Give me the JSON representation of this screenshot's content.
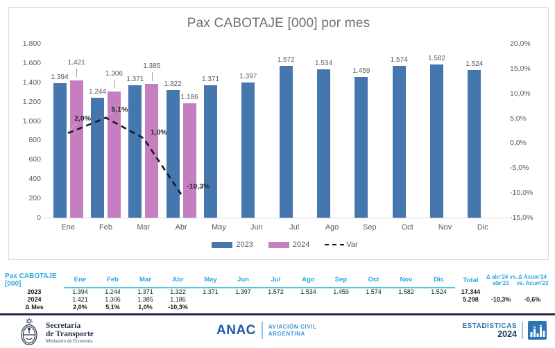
{
  "chart_data": {
    "type": "bar",
    "title": "Pax CABOTAJE [000] por mes",
    "categories": [
      "Ene",
      "Feb",
      "Mar",
      "Abr",
      "May",
      "Jun",
      "Jul",
      "Ago",
      "Sep",
      "Oct",
      "Nov",
      "Dic"
    ],
    "series": [
      {
        "name": "2023",
        "type": "bar",
        "color": "#4576AE",
        "values": [
          1394,
          1244,
          1371,
          1322,
          1371,
          1397,
          1572,
          1534,
          1459,
          1574,
          1582,
          1524
        ],
        "labels": [
          "1.394",
          "1.244",
          "1.371",
          "1.322",
          "1.371",
          "1.397",
          "1.572",
          "1.534",
          "1.459",
          "1.574",
          "1.582",
          "1.524"
        ]
      },
      {
        "name": "2024",
        "type": "bar",
        "color": "#C57FC1",
        "values": [
          1421,
          1306,
          1385,
          1186
        ],
        "labels": [
          "1.421",
          "1.306",
          "1.385",
          "1.186"
        ]
      },
      {
        "name": "Var",
        "type": "line",
        "dashed": true,
        "axis": "right",
        "color": "#1A1A1A",
        "values": [
          2.0,
          5.1,
          1.0,
          -10.3
        ],
        "labels": [
          "2,0%",
          "5,1%",
          "1,0%",
          "-10,3%"
        ]
      }
    ],
    "left_axis": {
      "min": 0,
      "max": 1800,
      "ticks": [
        {
          "v": 1800,
          "t": "1.800"
        },
        {
          "v": 1600,
          "t": "1.600"
        },
        {
          "v": 1400,
          "t": "1.400"
        },
        {
          "v": 1200,
          "t": "1.200"
        },
        {
          "v": 1000,
          "t": "1.000"
        },
        {
          "v": 800,
          "t": "800"
        },
        {
          "v": 600,
          "t": "600"
        },
        {
          "v": 400,
          "t": "400"
        },
        {
          "v": 200,
          "t": "200"
        },
        {
          "v": 0,
          "t": "0"
        }
      ]
    },
    "right_axis": {
      "min": -15,
      "max": 20,
      "ticks": [
        {
          "v": 20,
          "t": "20,0%"
        },
        {
          "v": 15,
          "t": "15,0%"
        },
        {
          "v": 10,
          "t": "10,0%"
        },
        {
          "v": 5,
          "t": "5,0%"
        },
        {
          "v": 0,
          "t": "0,0%"
        },
        {
          "v": -5,
          "t": "-5,0%"
        },
        {
          "v": -10,
          "t": "-10,0%"
        },
        {
          "v": -15,
          "t": "-15,0%"
        }
      ]
    },
    "legend": [
      {
        "label": "2023",
        "color": "#4576AE",
        "type": "bar"
      },
      {
        "label": "2024",
        "color": "#C57FC1",
        "type": "bar"
      },
      {
        "label": "Var",
        "color": "#1A1A1A",
        "type": "dash"
      }
    ]
  },
  "table": {
    "title_col": "Pax CABOTAJE [000]",
    "months": [
      "Ene",
      "Feb",
      "Mar",
      "Abr",
      "May",
      "Jun",
      "Jul",
      "Ago",
      "Sep",
      "Oct",
      "Nov",
      "Dic"
    ],
    "total_label": "Total",
    "delta_month_label": "Δ abr'24 vs.\nabr'23",
    "delta_acum_label": "Δ Acum'24\nvs. Acum'23",
    "rows": [
      {
        "label": "2023",
        "values": [
          "1.394",
          "1.244",
          "1.371",
          "1.322",
          "1.371",
          "1.397",
          "1.572",
          "1.534",
          "1.459",
          "1.574",
          "1.582",
          "1.524"
        ],
        "total": "17.344",
        "delta_month": "",
        "delta_acum": ""
      },
      {
        "label": "2024",
        "values": [
          "1.421",
          "1.306",
          "1.385",
          "1.186",
          "",
          "",
          "",
          "",
          "",
          "",
          "",
          ""
        ],
        "total": "5.298",
        "delta_month": "-10,3%",
        "delta_acum": "-0,6%"
      },
      {
        "label": "Δ Mes",
        "values": [
          "2,0%",
          "5,1%",
          "1,0%",
          "-10,3%",
          "",
          "",
          "",
          "",
          "",
          "",
          "",
          ""
        ],
        "total": "",
        "delta_month": "",
        "delta_acum": ""
      }
    ]
  },
  "footer": {
    "secretaria": {
      "line1": "Secretaría",
      "line2": "de Transporte",
      "line3": "Ministerio de Economía"
    },
    "anac": {
      "name": "ANAC",
      "tagline1": "AVIACIÓN CIVIL",
      "tagline2": "ARGENTINA"
    },
    "estadisticas": {
      "line1": "ESTADÍSTICAS",
      "line2": "2024"
    }
  },
  "colors": {
    "bar_2023": "#4576AE",
    "bar_2024": "#C57FC1",
    "var_line": "#1A1A1A",
    "table_accent": "#2BA9E0",
    "footer_rule": "#23284A",
    "anac_dark": "#1D5AA8",
    "anac_light": "#3E96D6",
    "stats_blue": "#2E75B6",
    "stats_dark": "#1F3864"
  }
}
